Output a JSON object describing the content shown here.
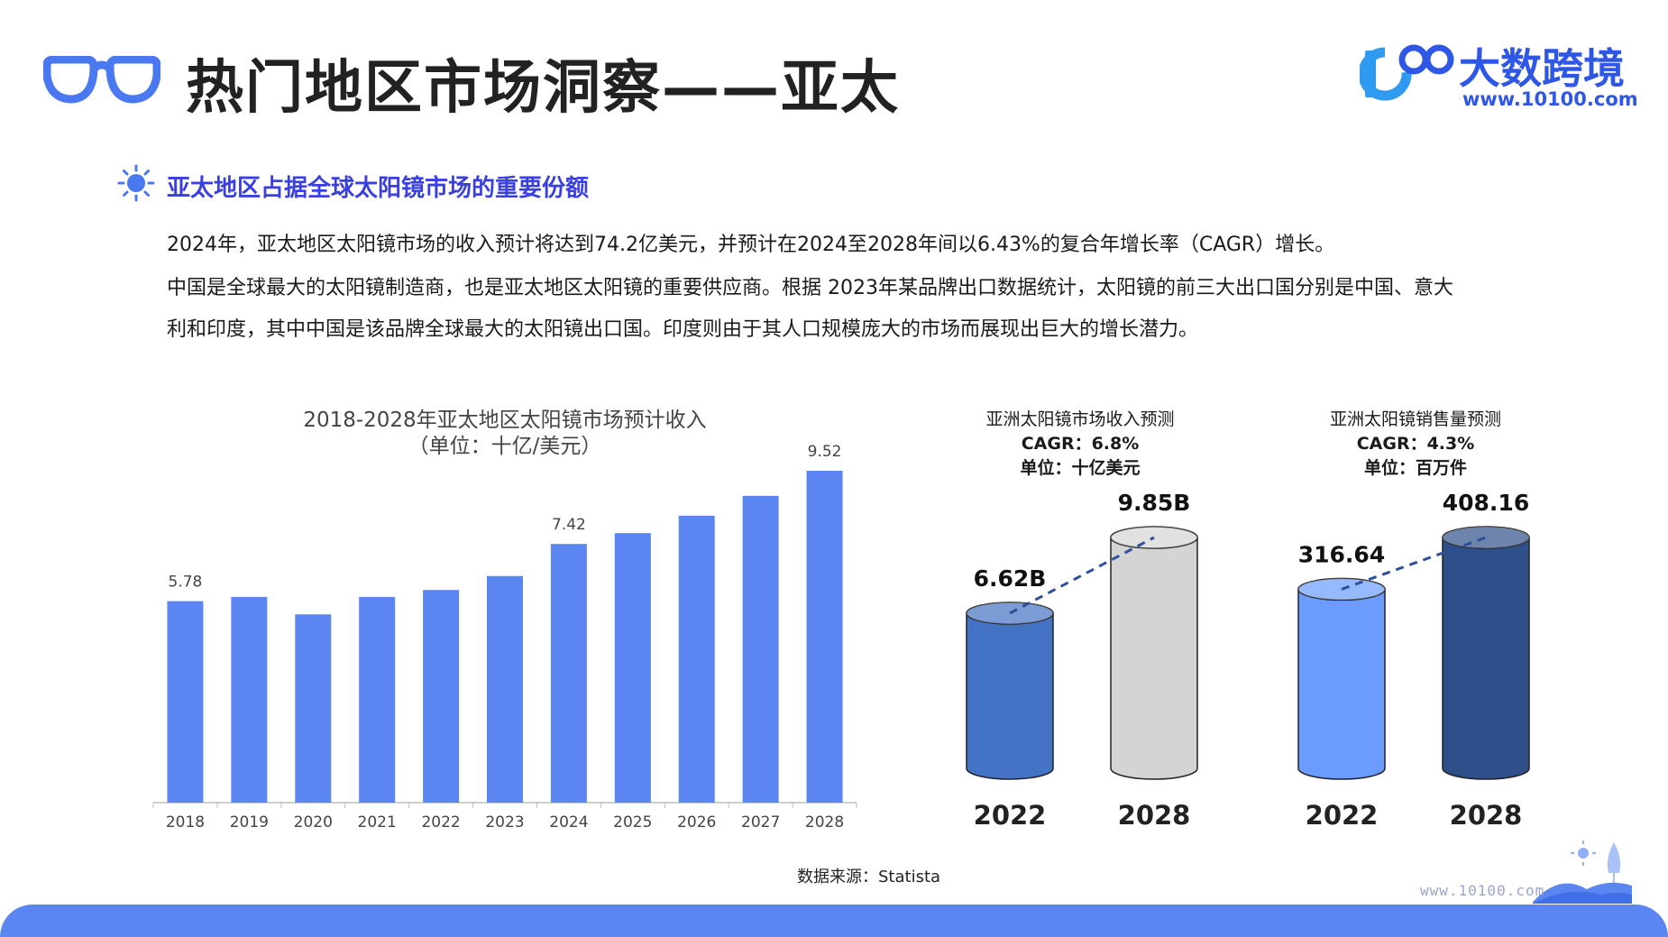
{
  "header": {
    "title": "热门地区市场洞察——亚太",
    "brand_name": "大数跨境",
    "brand_url": "www.10100.com"
  },
  "section": {
    "subheading": "亚太地区占据全球太阳镜市场的重要份额",
    "paragraphs": [
      "2024年，亚太地区太阳镜市场的收入预计将达到74.2亿美元，并预计在2024至2028年间以6.43%的复合年增长率（CAGR）增长。",
      "中国是全球最大的太阳镜制造商，也是亚太地区太阳镜的重要供应商。根据 2023年某品牌出口数据统计，太阳镜的前三大出口国分别是中国、意大",
      "利和印度，其中中国是该品牌全球最大的太阳镜出口国。印度则由于其人口规模庞大的市场而展现出巨大的增长潜力。"
    ]
  },
  "chart_data": [
    {
      "type": "bar",
      "title": "2018-2028年亚太地区太阳镜市场预计收入",
      "subtitle": "（单位：十亿/美元）",
      "categories": [
        "2018",
        "2019",
        "2020",
        "2021",
        "2022",
        "2023",
        "2024",
        "2025",
        "2026",
        "2027",
        "2028"
      ],
      "values": [
        5.78,
        5.9,
        5.4,
        5.9,
        6.1,
        6.5,
        7.42,
        7.73,
        8.23,
        8.8,
        9.52
      ],
      "value_labels": [
        "5.78",
        "",
        "",
        "",
        "",
        "",
        "7.42",
        "",
        "",
        "",
        "9.52"
      ],
      "ylim": [
        0,
        9.52
      ],
      "grid": false,
      "color": "#5b86f2"
    },
    {
      "type": "bar",
      "title": "亚洲太阳镜市场收入预测",
      "cagr": "CAGR：6.8%",
      "unit": "单位：十亿美元",
      "categories": [
        "2022",
        "2028"
      ],
      "values": [
        6.62,
        9.85
      ],
      "value_labels": [
        "6.62B",
        "9.85B"
      ],
      "colors": [
        "#4472c4",
        "#d4d4d4"
      ]
    },
    {
      "type": "bar",
      "title": "亚洲太阳镜销售量预测",
      "cagr": "CAGR：4.3%",
      "unit": "单位：百万件",
      "categories": [
        "2022",
        "2028"
      ],
      "values": [
        316.64,
        408.16
      ],
      "value_labels": [
        "316.64",
        "408.16"
      ],
      "colors": [
        "#6a9cff",
        "#2f4f8a"
      ]
    }
  ],
  "footer": {
    "source": "数据来源：Statista",
    "url": "www.10100.com"
  },
  "colors": {
    "accent": "#2f57e6",
    "bar": "#5b86f2",
    "footer_band": "#5b86f2"
  }
}
